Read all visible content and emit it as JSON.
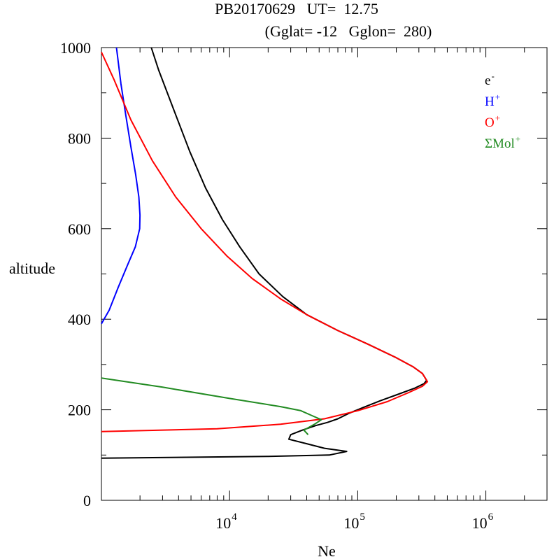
{
  "chart_data": {
    "type": "line",
    "title_line1": "PB20170629   UT=  12.75",
    "title_line2": "(Gglat= -12   Gglon=  280)",
    "xlabel": "Ne",
    "ylabel": "altitude",
    "xscale": "log",
    "xlim": [
      1000,
      3000000
    ],
    "ylim": [
      0,
      1000
    ],
    "xtick_labels": [
      {
        "value": 10000,
        "base": "10",
        "exp": "4"
      },
      {
        "value": 100000,
        "base": "10",
        "exp": "5"
      },
      {
        "value": 1000000,
        "base": "10",
        "exp": "6"
      }
    ],
    "ytick_labels": [
      {
        "value": 0,
        "label": "0"
      },
      {
        "value": 200,
        "label": "200"
      },
      {
        "value": 400,
        "label": "400"
      },
      {
        "value": 600,
        "label": "600"
      },
      {
        "value": 800,
        "label": "800"
      },
      {
        "value": 1000,
        "label": "1000"
      }
    ],
    "legend_position": "top-right",
    "series": [
      {
        "name": "e-",
        "label": "e",
        "sup": "-",
        "color": "#000000",
        "points": [
          [
            1000,
            93
          ],
          [
            20000,
            97
          ],
          [
            60000,
            100
          ],
          [
            82000,
            108
          ],
          [
            55000,
            115
          ],
          [
            40000,
            125
          ],
          [
            29000,
            135
          ],
          [
            30000,
            145
          ],
          [
            37000,
            155
          ],
          [
            47000,
            165
          ],
          [
            58000,
            172
          ],
          [
            70000,
            180
          ],
          [
            85000,
            192
          ],
          [
            110000,
            205
          ],
          [
            150000,
            220
          ],
          [
            210000,
            235
          ],
          [
            280000,
            248
          ],
          [
            330000,
            258
          ],
          [
            345000,
            265
          ],
          [
            320000,
            280
          ],
          [
            270000,
            295
          ],
          [
            200000,
            315
          ],
          [
            120000,
            345
          ],
          [
            70000,
            375
          ],
          [
            40000,
            410
          ],
          [
            26000,
            450
          ],
          [
            17000,
            500
          ],
          [
            12000,
            560
          ],
          [
            8800,
            620
          ],
          [
            6500,
            690
          ],
          [
            4900,
            770
          ],
          [
            3700,
            860
          ],
          [
            2800,
            950
          ],
          [
            2450,
            1000
          ]
        ]
      },
      {
        "name": "H+",
        "label": "H",
        "sup": "+",
        "color": "#0000ff",
        "points": [
          [
            1000,
            390
          ],
          [
            1150,
            420
          ],
          [
            1350,
            470
          ],
          [
            1600,
            520
          ],
          [
            1840,
            560
          ],
          [
            1990,
            600
          ],
          [
            2000,
            630
          ],
          [
            1960,
            670
          ],
          [
            1850,
            720
          ],
          [
            1700,
            780
          ],
          [
            1550,
            850
          ],
          [
            1420,
            920
          ],
          [
            1310,
            1000
          ]
        ]
      },
      {
        "name": "O+",
        "label": "O",
        "sup": "+",
        "color": "#ff0000",
        "points": [
          [
            1000,
            152
          ],
          [
            8000,
            158
          ],
          [
            25000,
            168
          ],
          [
            55000,
            180
          ],
          [
            100000,
            198
          ],
          [
            170000,
            218
          ],
          [
            250000,
            238
          ],
          [
            320000,
            252
          ],
          [
            350000,
            262
          ],
          [
            320000,
            280
          ],
          [
            270000,
            295
          ],
          [
            200000,
            315
          ],
          [
            120000,
            345
          ],
          [
            70000,
            375
          ],
          [
            40000,
            410
          ],
          [
            25000,
            445
          ],
          [
            15000,
            490
          ],
          [
            9500,
            540
          ],
          [
            6000,
            600
          ],
          [
            3800,
            670
          ],
          [
            2500,
            750
          ],
          [
            1700,
            840
          ],
          [
            1250,
            930
          ],
          [
            1000,
            990
          ]
        ]
      },
      {
        "name": "ΣMol+",
        "label": "ΣMol",
        "sup": "+",
        "color": "#228b22",
        "points": [
          [
            1000,
            270
          ],
          [
            3000,
            250
          ],
          [
            10000,
            225
          ],
          [
            25000,
            207
          ],
          [
            36000,
            198
          ],
          [
            44000,
            187
          ],
          [
            52000,
            178
          ],
          [
            46000,
            168
          ],
          [
            38000,
            155
          ],
          [
            41000,
            145
          ]
        ]
      }
    ]
  }
}
